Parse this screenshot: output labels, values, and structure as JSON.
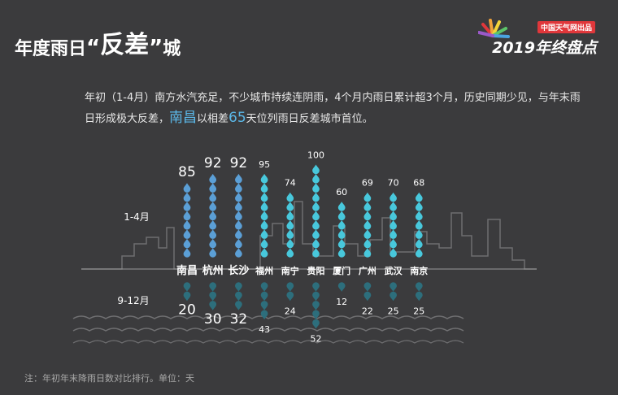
{
  "header": {
    "title_part1": "年度雨日",
    "title_open_quote": "“",
    "title_highlight": "反差",
    "title_close_quote": "”",
    "title_part2": "城"
  },
  "brand": {
    "subtitle": "中国天气网出品",
    "main": "2019年终盘点"
  },
  "intro": {
    "text1": "年初（1-4月）南方水汽充足，不少城市持续连阴雨，4个月内雨日累计超3个月，历史同期少见，与年末雨日形成极大反差，",
    "city": "南昌",
    "text2": "以相差",
    "diff": "65",
    "text3": "天位列雨日反差城市首位。"
  },
  "chart_data": {
    "type": "bar",
    "categories": [
      "南昌",
      "杭州",
      "长沙",
      "福州",
      "南宁",
      "贵阳",
      "厦门",
      "广州",
      "武汉",
      "南京"
    ],
    "series": [
      {
        "name": "1-4月",
        "values": [
          85,
          92,
          92,
          95,
          74,
          100,
          60,
          69,
          70,
          68
        ]
      },
      {
        "name": "9-12月",
        "values": [
          20,
          30,
          32,
          43,
          24,
          52,
          12,
          22,
          25,
          25
        ]
      }
    ],
    "unit": "天"
  },
  "note": "注：年初年末降雨日数对比排行。单位：天",
  "colors": {
    "background": "#3b3b3d",
    "top3_drop": "#5b9fd6",
    "other_drop": "#48c8dc",
    "bottom_drop": "#2d6e7c",
    "highlight": "#5bb8e8",
    "brand_red": "#e0373b"
  }
}
